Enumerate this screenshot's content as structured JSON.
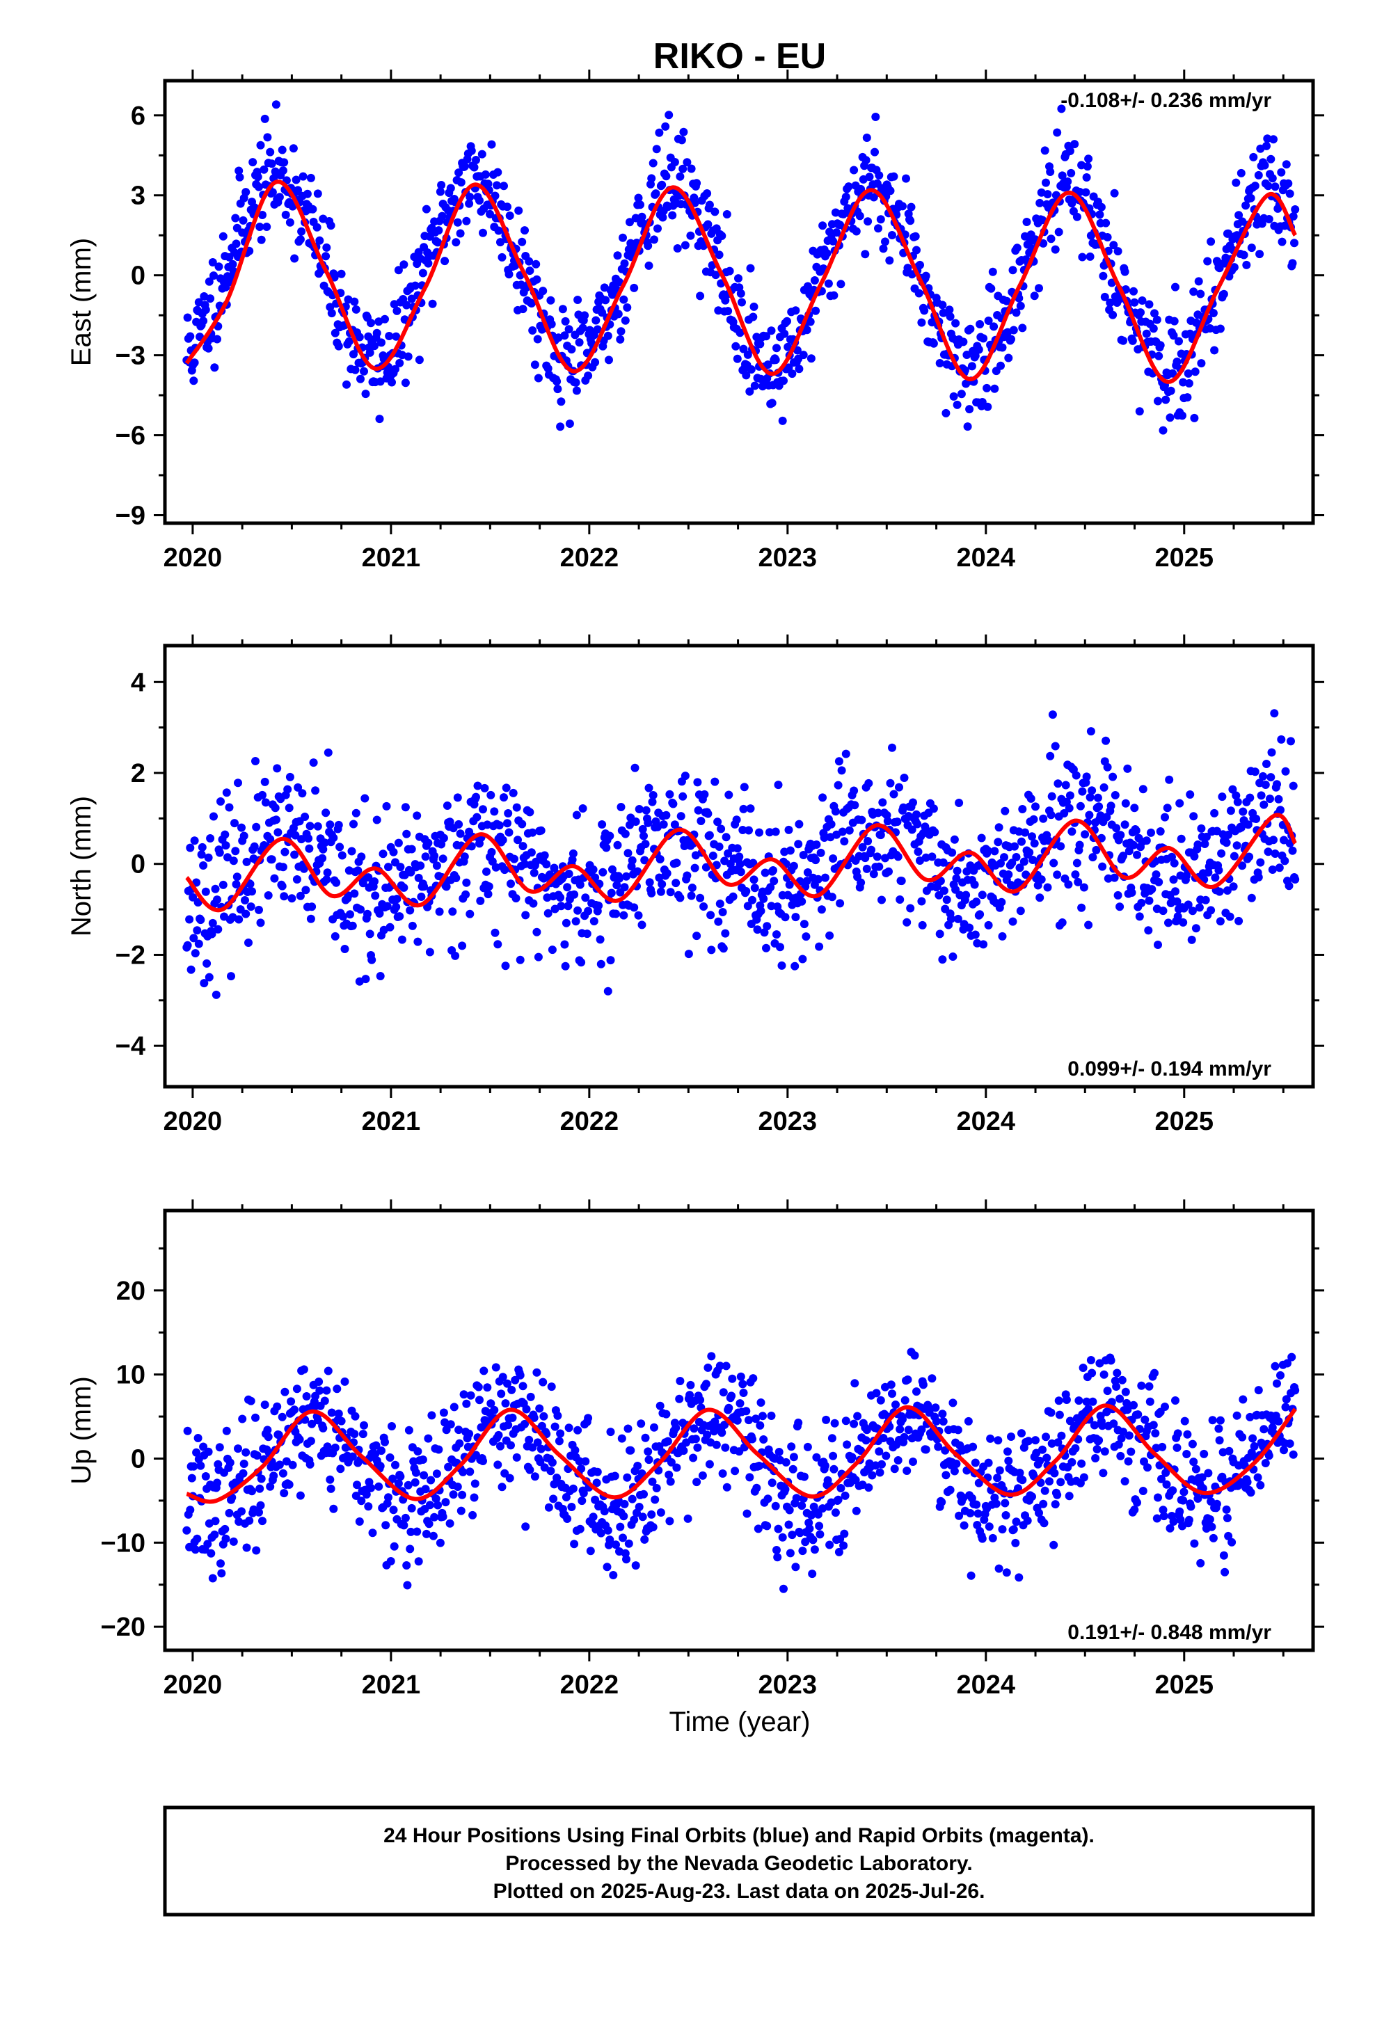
{
  "title": "RIKO - EU",
  "x_axis_label": "Time (year)",
  "footer": {
    "lines": [
      "24 Hour Positions Using Final Orbits (blue) and Rapid Orbits (magenta).",
      "Processed by the Nevada Geodetic Laboratory.",
      "Plotted on 2025-Aug-23. Last data on 2025-Jul-26."
    ]
  },
  "colors": {
    "observations": "#0000ff",
    "model": "#ff0000",
    "frame": "#000000"
  },
  "chart_data": [
    {
      "type": "scatter",
      "ylabel": "East (mm)",
      "rate_text": "-0.108+/- 0.236 mm/yr",
      "rate_position": "top-right",
      "xlim": [
        2019.86,
        2025.65
      ],
      "ylim": [
        -9.3,
        7.3
      ],
      "x_ticks": [
        2020,
        2021,
        2022,
        2023,
        2024,
        2025
      ],
      "y_ticks": [
        6,
        3,
        0,
        -3,
        -6,
        -9
      ],
      "observations": {
        "x_start": 2019.97,
        "x_end": 2025.56,
        "step_days": 1.6,
        "trend_mm_per_yr": -0.108,
        "seasonal_amplitude_mm": 3.4,
        "peak_fraction_of_year": 0.42,
        "scatter_sd_mm": 1.0,
        "seed": 11
      },
      "model": {
        "type": "line",
        "points": [
          [
            2019.97,
            -3.3
          ],
          [
            2020.17,
            -1.0
          ],
          [
            2020.42,
            3.5
          ],
          [
            2020.67,
            0.2
          ],
          [
            2020.92,
            -3.5
          ],
          [
            2021.17,
            -0.5
          ],
          [
            2021.42,
            3.4
          ],
          [
            2021.67,
            0.1
          ],
          [
            2021.92,
            -3.6
          ],
          [
            2022.17,
            -0.4
          ],
          [
            2022.42,
            3.3
          ],
          [
            2022.67,
            0.0
          ],
          [
            2022.92,
            -3.7
          ],
          [
            2023.17,
            -0.3
          ],
          [
            2023.42,
            3.2
          ],
          [
            2023.67,
            -0.2
          ],
          [
            2023.92,
            -3.9
          ],
          [
            2024.17,
            -0.4
          ],
          [
            2024.42,
            3.1
          ],
          [
            2024.67,
            -0.4
          ],
          [
            2024.92,
            -4.0
          ],
          [
            2025.17,
            -0.5
          ],
          [
            2025.42,
            3.0
          ],
          [
            2025.56,
            1.5
          ]
        ]
      }
    },
    {
      "type": "scatter",
      "ylabel": "North (mm)",
      "rate_text": "0.099+/- 0.194 mm/yr",
      "rate_position": "bottom-right",
      "xlim": [
        2019.86,
        2025.65
      ],
      "ylim": [
        -4.9,
        4.8
      ],
      "x_ticks": [
        2020,
        2021,
        2022,
        2023,
        2024,
        2025
      ],
      "y_ticks": [
        4,
        2,
        0,
        -2,
        -4
      ],
      "observations": {
        "x_start": 2019.97,
        "x_end": 2025.56,
        "step_days": 1.6,
        "trend_mm_per_yr": 0.099,
        "seasonal_amplitude_mm": 0.6,
        "peak_fraction_of_year": 0.45,
        "scatter_sd_mm": 0.85,
        "seed": 23
      },
      "model": {
        "type": "line",
        "points": [
          [
            2019.97,
            -0.3
          ],
          [
            2020.15,
            -1.0
          ],
          [
            2020.45,
            0.55
          ],
          [
            2020.7,
            -0.7
          ],
          [
            2020.92,
            -0.1
          ],
          [
            2021.15,
            -0.9
          ],
          [
            2021.45,
            0.65
          ],
          [
            2021.7,
            -0.6
          ],
          [
            2021.92,
            -0.05
          ],
          [
            2022.15,
            -0.8
          ],
          [
            2022.45,
            0.75
          ],
          [
            2022.7,
            -0.45
          ],
          [
            2022.92,
            0.1
          ],
          [
            2023.15,
            -0.7
          ],
          [
            2023.45,
            0.85
          ],
          [
            2023.7,
            -0.35
          ],
          [
            2023.92,
            0.25
          ],
          [
            2024.15,
            -0.6
          ],
          [
            2024.45,
            0.95
          ],
          [
            2024.7,
            -0.3
          ],
          [
            2024.92,
            0.35
          ],
          [
            2025.15,
            -0.5
          ],
          [
            2025.45,
            1.05
          ],
          [
            2025.56,
            0.45
          ]
        ]
      }
    },
    {
      "type": "scatter",
      "ylabel": "Up (mm)",
      "rate_text": "0.191+/- 0.848 mm/yr",
      "rate_position": "bottom-right",
      "xlim": [
        2019.86,
        2025.65
      ],
      "ylim": [
        -22.8,
        29.5
      ],
      "x_ticks": [
        2020,
        2021,
        2022,
        2023,
        2024,
        2025
      ],
      "y_ticks": [
        20,
        10,
        0,
        -10,
        -20
      ],
      "observations": {
        "x_start": 2019.97,
        "x_end": 2025.56,
        "step_days": 1.6,
        "trend_mm_per_yr": 0.191,
        "seasonal_amplitude_mm": 5.2,
        "peak_fraction_of_year": 0.6,
        "scatter_sd_mm": 4.0,
        "seed": 37
      },
      "model": {
        "type": "line",
        "points": [
          [
            2019.97,
            -4.2
          ],
          [
            2020.12,
            -5.0
          ],
          [
            2020.35,
            -1.0
          ],
          [
            2020.6,
            5.6
          ],
          [
            2020.85,
            0.3
          ],
          [
            2021.12,
            -4.8
          ],
          [
            2021.35,
            -0.8
          ],
          [
            2021.6,
            5.8
          ],
          [
            2021.85,
            0.4
          ],
          [
            2022.12,
            -4.6
          ],
          [
            2022.35,
            -0.6
          ],
          [
            2022.6,
            5.8
          ],
          [
            2022.85,
            0.5
          ],
          [
            2023.12,
            -4.5
          ],
          [
            2023.35,
            -0.5
          ],
          [
            2023.6,
            6.1
          ],
          [
            2023.85,
            0.5
          ],
          [
            2024.12,
            -4.3
          ],
          [
            2024.35,
            -0.3
          ],
          [
            2024.6,
            6.3
          ],
          [
            2024.85,
            0.6
          ],
          [
            2025.1,
            -4.1
          ],
          [
            2025.35,
            -0.6
          ],
          [
            2025.56,
            5.9
          ]
        ]
      }
    }
  ]
}
